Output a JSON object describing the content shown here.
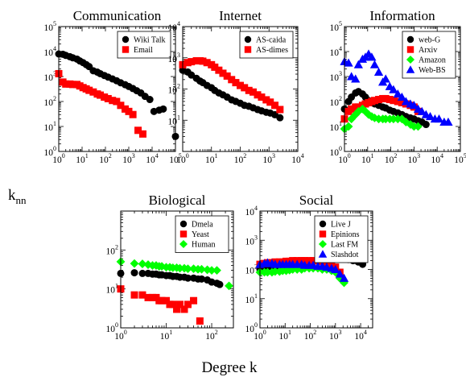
{
  "figure": {
    "xlabel": "Degree k",
    "ylabel": "k",
    "ylabel_sub": "nn"
  },
  "chart_data": [
    {
      "type": "scatter",
      "title": "Communication",
      "xscale": "log",
      "yscale": "log",
      "xlim": [
        1,
        100000
      ],
      "ylim": [
        1,
        100000
      ],
      "legend_position": "top-right",
      "series": [
        {
          "name": "Wiki Talk",
          "marker": "circle",
          "color": "#000000",
          "x": [
            1,
            1.5,
            2,
            3,
            4,
            6,
            8,
            11,
            15,
            20,
            30,
            45,
            60,
            90,
            130,
            200,
            300,
            450,
            700,
            1000,
            1500,
            2200,
            3300,
            5000,
            8000,
            12000,
            20000,
            30000,
            100000
          ],
          "y": [
            8000,
            7800,
            7000,
            6200,
            5600,
            5000,
            4200,
            3600,
            3000,
            2500,
            1700,
            1500,
            1300,
            1100,
            950,
            800,
            680,
            560,
            470,
            400,
            330,
            270,
            220,
            160,
            120,
            40,
            45,
            50,
            4
          ]
        },
        {
          "name": "Email",
          "marker": "square",
          "color": "#ff0000",
          "x": [
            1,
            1.5,
            2,
            3,
            4,
            6,
            8,
            11,
            15,
            20,
            30,
            45,
            60,
            90,
            130,
            200,
            300,
            450,
            700,
            1000,
            1500,
            2500,
            4000
          ],
          "y": [
            1300,
            600,
            500,
            500,
            480,
            480,
            420,
            360,
            320,
            280,
            240,
            200,
            180,
            150,
            130,
            110,
            100,
            70,
            50,
            40,
            30,
            7,
            5
          ]
        }
      ]
    },
    {
      "type": "scatter",
      "title": "Internet",
      "xscale": "log",
      "yscale": "log",
      "xlim": [
        1,
        10000
      ],
      "ylim": [
        1,
        10000
      ],
      "legend_position": "top-right",
      "series": [
        {
          "name": "AS-caida",
          "marker": "circle",
          "color": "#000000",
          "x": [
            1,
            1.5,
            2,
            3,
            4,
            5,
            7,
            10,
            13,
            18,
            25,
            35,
            50,
            70,
            100,
            140,
            200,
            280,
            400,
            550,
            800,
            1100,
            1600,
            2400
          ],
          "y": [
            400,
            350,
            280,
            220,
            180,
            160,
            130,
            110,
            90,
            75,
            65,
            55,
            45,
            40,
            35,
            30,
            28,
            25,
            22,
            20,
            18,
            17,
            15,
            12
          ]
        },
        {
          "name": "AS-dimes",
          "marker": "square",
          "color": "#ff0000",
          "x": [
            1,
            1.5,
            2,
            3,
            4,
            5,
            7,
            10,
            13,
            18,
            25,
            35,
            50,
            70,
            100,
            140,
            200,
            280,
            400,
            550,
            800,
            1100,
            1600,
            2400
          ],
          "y": [
            600,
            700,
            750,
            800,
            800,
            780,
            700,
            600,
            500,
            400,
            320,
            260,
            200,
            160,
            130,
            110,
            90,
            80,
            65,
            55,
            45,
            38,
            30,
            22
          ]
        }
      ]
    },
    {
      "type": "scatter",
      "title": "Information",
      "xscale": "log",
      "yscale": "log",
      "xlim": [
        1,
        100000
      ],
      "ylim": [
        1,
        100000
      ],
      "legend_position": "top-right",
      "series": [
        {
          "name": "web-G",
          "marker": "circle",
          "color": "#000000",
          "x": [
            1,
            1.5,
            2,
            3,
            4,
            6,
            8,
            11,
            15,
            20,
            30,
            45,
            60,
            90,
            130,
            200,
            300,
            450,
            700,
            1000,
            1500,
            2200,
            3300
          ],
          "y": [
            50,
            100,
            150,
            220,
            250,
            200,
            150,
            110,
            90,
            80,
            70,
            60,
            55,
            45,
            40,
            35,
            30,
            25,
            22,
            20,
            17,
            15,
            12
          ]
        },
        {
          "name": "Arxiv",
          "marker": "square",
          "color": "#ff0000",
          "x": [
            1,
            1.5,
            2,
            3,
            4,
            6,
            8,
            11,
            15,
            20,
            30,
            45,
            60,
            90,
            130,
            200,
            300,
            450,
            700,
            1000,
            1500
          ],
          "y": [
            20,
            40,
            50,
            60,
            60,
            70,
            80,
            90,
            100,
            110,
            120,
            130,
            130,
            120,
            110,
            100,
            90,
            80,
            70,
            60,
            40
          ]
        },
        {
          "name": "Amazon",
          "marker": "diamond",
          "color": "#00ff00",
          "x": [
            1,
            1.5,
            2,
            3,
            4,
            6,
            8,
            11,
            15,
            20,
            30,
            45,
            60,
            90,
            130,
            200,
            300,
            450,
            700,
            1000,
            1500
          ],
          "y": [
            8,
            10,
            20,
            30,
            40,
            50,
            40,
            30,
            25,
            22,
            20,
            20,
            20,
            20,
            20,
            20,
            20,
            15,
            12,
            10,
            10
          ]
        },
        {
          "name": "Web-BS",
          "marker": "triangle",
          "color": "#0000ff",
          "x": [
            1,
            1.5,
            2,
            3,
            4,
            6,
            8,
            11,
            15,
            20,
            30,
            45,
            60,
            90,
            130,
            200,
            300,
            450,
            700,
            1000,
            1500,
            2200,
            3300,
            5000,
            8000,
            12000,
            20000,
            30000
          ],
          "y": [
            4000,
            3500,
            1000,
            800,
            3000,
            5000,
            6000,
            8000,
            6000,
            3000,
            1500,
            600,
            800,
            400,
            300,
            200,
            150,
            100,
            80,
            70,
            50,
            40,
            30,
            25,
            20,
            20,
            15,
            15
          ]
        }
      ]
    },
    {
      "type": "scatter",
      "title": "Biological",
      "xscale": "log",
      "yscale": "log",
      "xlim": [
        1,
        300
      ],
      "ylim": [
        1,
        1000
      ],
      "legend_position": "top-right",
      "series": [
        {
          "name": "Dmela",
          "marker": "circle",
          "color": "#000000",
          "x": [
            1,
            2,
            3,
            4,
            5,
            6,
            7,
            8,
            10,
            12,
            14,
            17,
            20,
            25,
            30,
            40,
            50,
            60,
            80,
            100,
            130,
            150
          ],
          "y": [
            25,
            26,
            25,
            25,
            24,
            24,
            23,
            23,
            22,
            22,
            21,
            21,
            20,
            20,
            19,
            19,
            18,
            18,
            17,
            15,
            14,
            13
          ]
        },
        {
          "name": "Yeast",
          "marker": "square",
          "color": "#ff0000",
          "x": [
            1,
            2,
            3,
            4,
            5,
            6,
            7,
            8,
            10,
            12,
            14,
            17,
            20,
            25,
            30,
            40,
            55
          ],
          "y": [
            10,
            7,
            7,
            6,
            6,
            6,
            5,
            5,
            5,
            4,
            4,
            3,
            4,
            3,
            4,
            5,
            1.5
          ]
        },
        {
          "name": "Human",
          "marker": "diamond",
          "color": "#00ff00",
          "x": [
            1,
            2,
            3,
            4,
            5,
            6,
            7,
            8,
            10,
            12,
            14,
            17,
            20,
            25,
            30,
            40,
            50,
            60,
            80,
            100,
            130,
            240
          ],
          "y": [
            50,
            45,
            44,
            42,
            40,
            40,
            38,
            38,
            36,
            36,
            35,
            35,
            34,
            34,
            33,
            33,
            32,
            32,
            31,
            30,
            30,
            12
          ]
        }
      ]
    },
    {
      "type": "scatter",
      "title": "Social",
      "xscale": "log",
      "yscale": "log",
      "xlim": [
        1,
        30000
      ],
      "ylim": [
        1,
        10000
      ],
      "legend_position": "top-right",
      "series": [
        {
          "name": "Live J",
          "marker": "circle",
          "color": "#000000",
          "x": [
            1,
            1.5,
            2,
            3,
            4,
            6,
            8,
            11,
            15,
            20,
            30,
            45,
            60,
            90,
            130,
            200,
            300,
            450,
            700,
            1000,
            1500,
            2200,
            3300,
            5000,
            8000,
            12000
          ],
          "y": [
            100,
            120,
            120,
            120,
            120,
            120,
            120,
            120,
            120,
            120,
            130,
            140,
            150,
            160,
            180,
            200,
            250,
            300,
            300,
            280,
            260,
            240,
            220,
            200,
            180,
            150
          ]
        },
        {
          "name": "Epinions",
          "marker": "square",
          "color": "#ff0000",
          "x": [
            1,
            1.5,
            2,
            3,
            4,
            6,
            8,
            11,
            15,
            20,
            30,
            45,
            60,
            90,
            130,
            200,
            300,
            450,
            700,
            1000,
            1500
          ],
          "y": [
            150,
            160,
            170,
            170,
            180,
            180,
            180,
            190,
            190,
            200,
            200,
            200,
            200,
            200,
            200,
            200,
            190,
            170,
            150,
            120,
            80
          ]
        },
        {
          "name": "Last FM",
          "marker": "diamond",
          "color": "#00ff00",
          "x": [
            1,
            1.5,
            2,
            3,
            4,
            6,
            8,
            11,
            15,
            20,
            30,
            45,
            60,
            90,
            130,
            200,
            300,
            450,
            700,
            1000,
            1500,
            2200
          ],
          "y": [
            80,
            80,
            80,
            80,
            85,
            85,
            90,
            90,
            95,
            100,
            100,
            100,
            110,
            110,
            110,
            110,
            100,
            100,
            90,
            80,
            50,
            35
          ]
        },
        {
          "name": "Slashdot",
          "marker": "triangle",
          "color": "#0000ff",
          "x": [
            1,
            1.5,
            2,
            3,
            4,
            6,
            8,
            11,
            15,
            20,
            30,
            45,
            60,
            90,
            130,
            200,
            300,
            450,
            700,
            1000,
            1500,
            2200
          ],
          "y": [
            150,
            160,
            170,
            160,
            150,
            150,
            150,
            150,
            150,
            150,
            150,
            150,
            140,
            140,
            140,
            130,
            130,
            120,
            110,
            100,
            70,
            50
          ]
        }
      ]
    }
  ]
}
